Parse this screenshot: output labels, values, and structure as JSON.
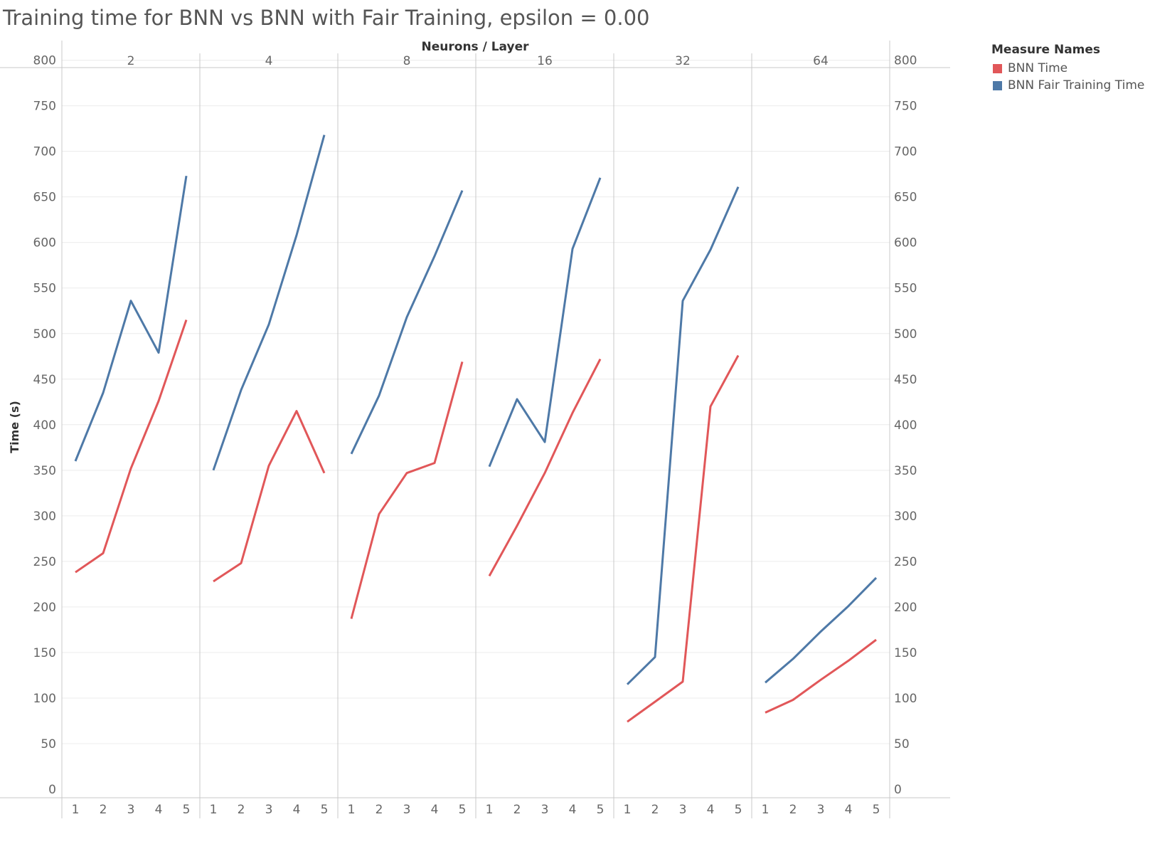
{
  "chart_data": {
    "type": "line",
    "title": "Training time for BNN vs BNN with Fair Training, epsilon = 0.00",
    "column_header": "Neurons / Layer",
    "ylabel": "Time (s)",
    "ylim": [
      0,
      800
    ],
    "yticks": [
      0,
      50,
      100,
      150,
      200,
      250,
      300,
      350,
      400,
      450,
      500,
      550,
      600,
      650,
      700,
      750,
      800
    ],
    "x": [
      1,
      2,
      3,
      4,
      5
    ],
    "legend_title": "Measure Names",
    "legend_position": "top-right",
    "grid": true,
    "series": [
      {
        "name": "BNN Time",
        "color": "#e15759"
      },
      {
        "name": "BNN Fair Training Time",
        "color": "#4e79a7"
      }
    ],
    "panels": [
      {
        "label": "2",
        "series": [
          [
            238,
            259,
            352,
            426,
            515
          ],
          [
            360,
            435,
            536,
            479,
            673
          ]
        ]
      },
      {
        "label": "4",
        "series": [
          [
            228,
            248,
            355,
            415,
            347
          ],
          [
            350,
            438,
            510,
            608,
            718
          ]
        ]
      },
      {
        "label": "8",
        "series": [
          [
            187,
            302,
            347,
            358,
            469
          ],
          [
            368,
            432,
            518,
            585,
            657
          ]
        ]
      },
      {
        "label": "16",
        "series": [
          [
            234,
            289,
            347,
            413,
            472
          ],
          [
            354,
            428,
            381,
            593,
            671
          ]
        ]
      },
      {
        "label": "32",
        "series": [
          [
            74,
            96,
            118,
            420,
            476
          ],
          [
            115,
            145,
            536,
            592,
            661
          ]
        ]
      },
      {
        "label": "64",
        "series": [
          [
            84,
            98,
            120,
            141,
            164
          ],
          [
            117,
            143,
            173,
            201,
            232
          ]
        ]
      }
    ]
  }
}
